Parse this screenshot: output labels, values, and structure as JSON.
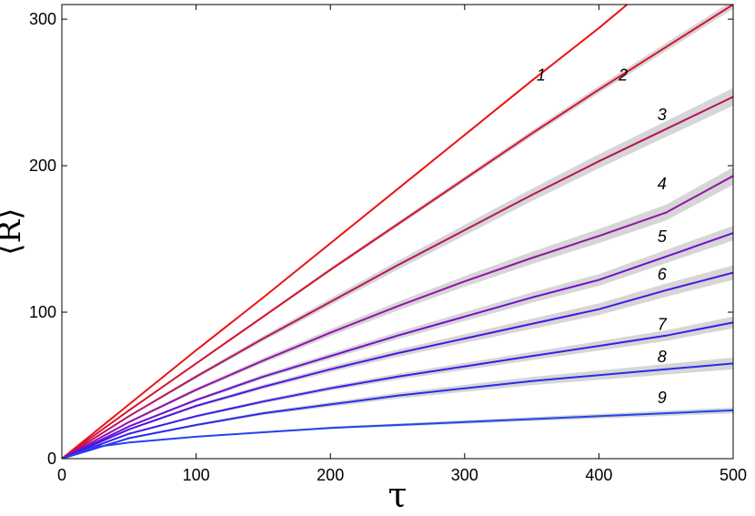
{
  "chart_data": {
    "type": "line",
    "xlabel": "τ",
    "ylabel": "⟨R⟩",
    "xlim": [
      0,
      500
    ],
    "ylim": [
      0,
      310
    ],
    "xticks": [
      0,
      100,
      200,
      300,
      400,
      500
    ],
    "yticks": [
      0,
      100,
      200,
      300
    ],
    "grid": false,
    "legend": "none",
    "band_color": "#d6d6d6",
    "series": [
      {
        "label": "1",
        "color": "#ee1111",
        "x": [
          0,
          50,
          100,
          150,
          200,
          250,
          300,
          350,
          400,
          421
        ],
        "y": [
          0,
          37,
          74,
          110,
          147,
          184,
          221,
          258,
          294,
          310
        ],
        "band": 0
      },
      {
        "label": "2",
        "color": "#d81030",
        "x": [
          0,
          50,
          100,
          150,
          200,
          250,
          300,
          350,
          400,
          450,
          500
        ],
        "y": [
          0,
          33,
          65,
          97,
          129,
          160,
          191,
          222,
          252,
          281,
          310
        ],
        "band": 3
      },
      {
        "label": "3",
        "color": "#b5145f",
        "x": [
          0,
          50,
          100,
          150,
          200,
          250,
          300,
          350,
          400,
          450,
          500
        ],
        "y": [
          0,
          29,
          56,
          82,
          107,
          132,
          156,
          180,
          203,
          225,
          247
        ],
        "band": 6
      },
      {
        "label": "4",
        "color": "#9414a6",
        "x": [
          0,
          50,
          100,
          150,
          200,
          250,
          300,
          350,
          400,
          450,
          500
        ],
        "y": [
          0,
          25,
          47,
          67,
          86,
          104,
          121,
          137,
          152,
          168,
          193
        ],
        "band": 6
      },
      {
        "label": "5",
        "color": "#7010d0",
        "x": [
          0,
          50,
          100,
          150,
          200,
          250,
          300,
          350,
          400,
          450,
          500
        ],
        "y": [
          0,
          22,
          40,
          56,
          70,
          84,
          97,
          110,
          122,
          138,
          154
        ],
        "band": 5
      },
      {
        "label": "6",
        "color": "#4a14e4",
        "x": [
          0,
          50,
          100,
          150,
          200,
          250,
          300,
          350,
          400,
          450,
          500
        ],
        "y": [
          0,
          20,
          36,
          49,
          61,
          72,
          82,
          92,
          102,
          115,
          127
        ],
        "band": 5
      },
      {
        "label": "7",
        "color": "#3a1cee",
        "x": [
          0,
          50,
          100,
          150,
          200,
          250,
          300,
          350,
          400,
          450,
          500
        ],
        "y": [
          0,
          17,
          29,
          39,
          48,
          56,
          63,
          70,
          77,
          84,
          93
        ],
        "band": 4
      },
      {
        "label": "8",
        "color": "#2a2af2",
        "x": [
          0,
          50,
          100,
          150,
          200,
          250,
          300,
          350,
          400,
          450,
          500
        ],
        "y": [
          0,
          14,
          23,
          31,
          37,
          43,
          48,
          53,
          57,
          61,
          65
        ],
        "band": 4
      },
      {
        "label": "9",
        "color": "#2244ee",
        "x": [
          0,
          25,
          50,
          100,
          150,
          200,
          250,
          300,
          350,
          400,
          450,
          500
        ],
        "y": [
          0,
          8,
          11,
          15,
          18,
          21,
          23,
          25,
          27,
          29,
          31,
          33
        ],
        "band": 2
      }
    ]
  }
}
